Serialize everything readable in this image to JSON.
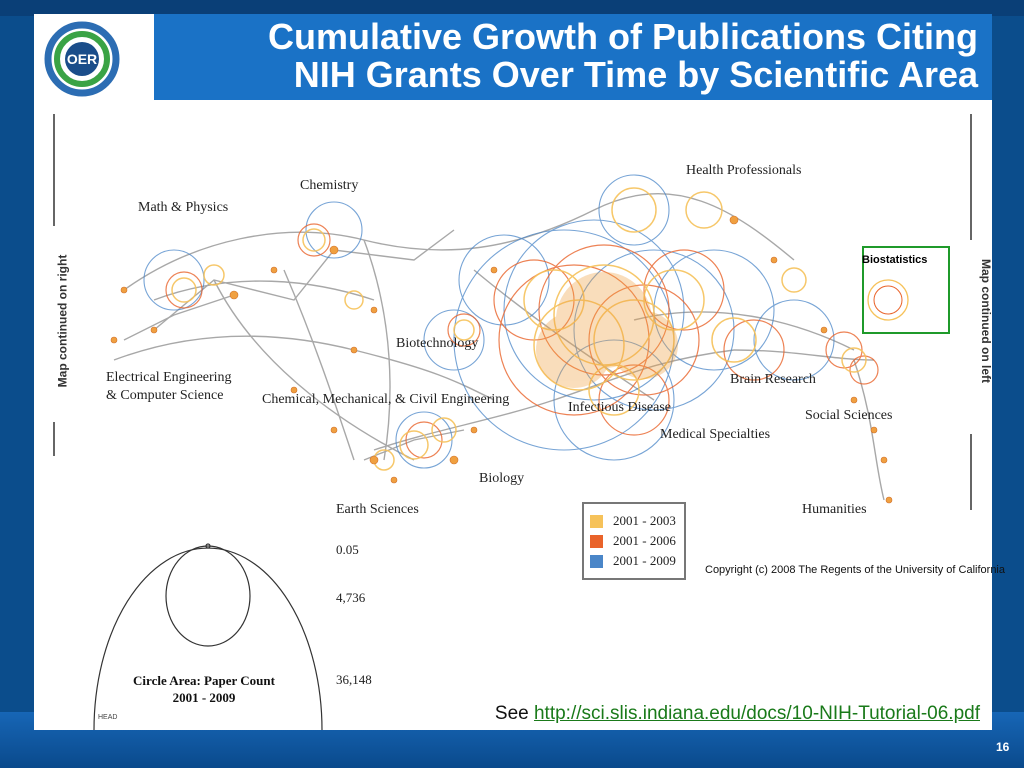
{
  "slide": {
    "title_line1": "Cumulative Growth of Publications Citing",
    "title_line2": "NIH Grants Over Time by Scientific Area",
    "logo_text": "OER",
    "page_number": "16"
  },
  "map": {
    "side_left": "Map continued on right",
    "side_right": "Map continued on left",
    "labels": {
      "math_physics": "Math & Physics",
      "chemistry": "Chemistry",
      "health_professionals": "Health Professionals",
      "biotechnology": "Biotechnology",
      "eecs_line1": "Electrical Engineering",
      "eecs_line2": "& Computer Science",
      "chem_mech_civil": "Chemical, Mechanical, & Civil Engineering",
      "infectious_disease": "Infectious Disease",
      "brain_research": "Brain Research",
      "medical_specialties": "Medical Specialties",
      "social_sciences": "Social Sciences",
      "biology": "Biology",
      "earth_sciences": "Earth Sciences",
      "humanities": "Humanities",
      "biostatistics": "Biostatistics"
    },
    "legend": [
      {
        "label": "2001 - 2003",
        "color": "#f6c25a"
      },
      {
        "label": "2001 - 2006",
        "color": "#e9632a"
      },
      {
        "label": "2001 - 2009",
        "color": "#4a86c8"
      }
    ],
    "copyright": "Copyright (c) 2008 The Regents of the University of California",
    "scale": {
      "values": [
        "0.05",
        "4,736",
        "36,148"
      ],
      "caption_line1": "Circle Area: Paper Count",
      "caption_line2": "2001 - 2009"
    },
    "small_mark": "HEAD"
  },
  "footer": {
    "see_prefix": "See ",
    "link": "http://sci.slis.indiana.edu/docs/10-NIH-Tutorial-06.pdf"
  },
  "colors": {
    "header_blue": "#1a72c6",
    "background_blue": "#0b4d8c",
    "yellow": "#f6c25a",
    "orange": "#e9632a",
    "blue": "#4a86c8",
    "link_green": "#1a7a1a"
  }
}
